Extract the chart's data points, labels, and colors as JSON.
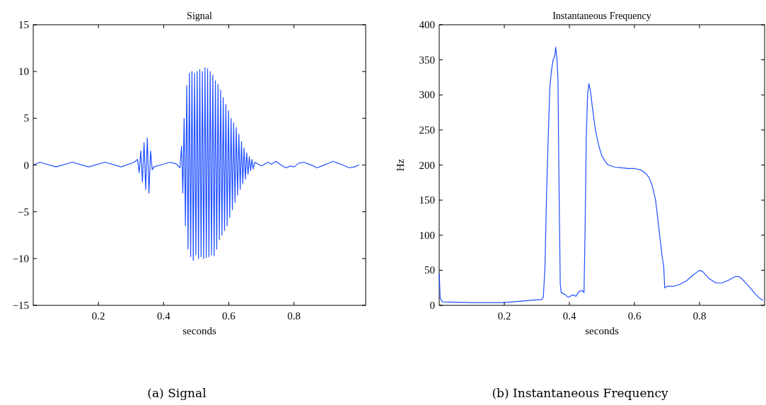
{
  "chart_data": [
    {
      "type": "line",
      "title": "Signal",
      "xlabel": "seconds",
      "color": "#1f4fff",
      "x": [
        0,
        0.02,
        0.07,
        0.12,
        0.17,
        0.22,
        0.27,
        0.31,
        0.32,
        0.325,
        0.33,
        0.335,
        0.34,
        0.345,
        0.35,
        0.355,
        0.36,
        0.365,
        0.37,
        0.39,
        0.42,
        0.44,
        0.45,
        0.455,
        0.459,
        0.463,
        0.467,
        0.471,
        0.475,
        0.479,
        0.483,
        0.487,
        0.491,
        0.495,
        0.499,
        0.503,
        0.507,
        0.511,
        0.515,
        0.519,
        0.523,
        0.527,
        0.531,
        0.535,
        0.539,
        0.543,
        0.547,
        0.551,
        0.555,
        0.559,
        0.563,
        0.567,
        0.571,
        0.575,
        0.579,
        0.583,
        0.587,
        0.591,
        0.595,
        0.599,
        0.603,
        0.607,
        0.611,
        0.615,
        0.619,
        0.623,
        0.627,
        0.631,
        0.635,
        0.639,
        0.643,
        0.647,
        0.651,
        0.655,
        0.659,
        0.663,
        0.667,
        0.671,
        0.675,
        0.68,
        0.7,
        0.72,
        0.73,
        0.745,
        0.76,
        0.775,
        0.79,
        0.8,
        0.815,
        0.83,
        0.845,
        0.86,
        0.87,
        0.885,
        0.9,
        0.92,
        0.935,
        0.95,
        0.97,
        0.985,
        1.0
      ],
      "values": [
        0,
        0.3,
        -0.2,
        0.3,
        -0.2,
        0.3,
        -0.2,
        0.3,
        0.6,
        -0.8,
        1.5,
        -1.8,
        2.4,
        -2.6,
        2.9,
        -3.0,
        1.5,
        -0.5,
        -0.2,
        0,
        0.3,
        0.1,
        -0.3,
        2.0,
        -3.0,
        5.0,
        -6.5,
        8.5,
        -9.0,
        9.8,
        -9.8,
        10.0,
        -10.2,
        9.8,
        -9.6,
        10.0,
        -10.0,
        10.2,
        -9.8,
        10.0,
        -10.0,
        10.4,
        -9.9,
        10.3,
        -9.8,
        10.0,
        -9.6,
        9.6,
        -9.7,
        9.0,
        -9.0,
        8.6,
        -8.0,
        8.0,
        -7.5,
        7.2,
        -7.0,
        6.5,
        -6.5,
        5.8,
        -5.6,
        5.0,
        -4.8,
        4.5,
        -4.0,
        4.0,
        -3.2,
        3.3,
        -2.6,
        2.5,
        -2.0,
        1.8,
        -1.5,
        1.3,
        -1.0,
        0.9,
        -0.6,
        0.6,
        -0.4,
        0.3,
        -0.1,
        0.3,
        0.1,
        0.4,
        0,
        -0.3,
        -0.1,
        -0.2,
        0.2,
        0.3,
        0.1,
        -0.1,
        -0.3,
        -0.1,
        0.1,
        0.4,
        0.2,
        0,
        -0.3,
        -0.2,
        0
      ],
      "xlim": [
        0,
        1.02
      ],
      "ylim": [
        -15,
        15
      ],
      "xticks": [
        0.2,
        0.4,
        0.6,
        0.8
      ],
      "yticks": [
        -15,
        -10,
        -5,
        0,
        5,
        10,
        15
      ],
      "annotations": [
        "(a) Signal"
      ]
    },
    {
      "type": "line",
      "title": "Instantaneous Frequency",
      "xlabel": "seconds",
      "ylabel": "Hz",
      "color": "#1f4fff",
      "x": [
        0,
        0.003,
        0.01,
        0.1,
        0.2,
        0.25,
        0.3,
        0.315,
        0.32,
        0.325,
        0.33,
        0.335,
        0.34,
        0.345,
        0.35,
        0.355,
        0.358,
        0.362,
        0.365,
        0.368,
        0.372,
        0.375,
        0.385,
        0.395,
        0.4,
        0.41,
        0.42,
        0.43,
        0.44,
        0.445,
        0.448,
        0.452,
        0.456,
        0.46,
        0.465,
        0.47,
        0.48,
        0.49,
        0.5,
        0.51,
        0.52,
        0.54,
        0.56,
        0.58,
        0.6,
        0.62,
        0.635,
        0.645,
        0.655,
        0.665,
        0.675,
        0.685,
        0.69,
        0.693,
        0.7,
        0.72,
        0.74,
        0.76,
        0.78,
        0.8,
        0.81,
        0.83,
        0.85,
        0.87,
        0.89,
        0.91,
        0.92,
        0.93,
        0.95,
        0.97,
        0.985,
        0.995
      ],
      "values": [
        45,
        10,
        5,
        4,
        4,
        6,
        8,
        8,
        12,
        55,
        160,
        240,
        310,
        335,
        350,
        355,
        368,
        350,
        320,
        180,
        30,
        18,
        16,
        12,
        12,
        15,
        13,
        20,
        21,
        18,
        100,
        240,
        300,
        316,
        305,
        285,
        250,
        228,
        213,
        205,
        200,
        197,
        196,
        195,
        195,
        193,
        188,
        182,
        170,
        150,
        110,
        70,
        55,
        25,
        27,
        27,
        30,
        35,
        43,
        50,
        48,
        38,
        32,
        32,
        36,
        41,
        41,
        38,
        28,
        17,
        10,
        7
      ],
      "xlim": [
        0,
        1
      ],
      "ylim": [
        0,
        400
      ],
      "xticks": [
        0.2,
        0.4,
        0.6,
        0.8
      ],
      "yticks": [
        0,
        50,
        100,
        150,
        200,
        250,
        300,
        350,
        400
      ],
      "annotations": [
        "(b) Instantaneous Frequency"
      ]
    }
  ]
}
